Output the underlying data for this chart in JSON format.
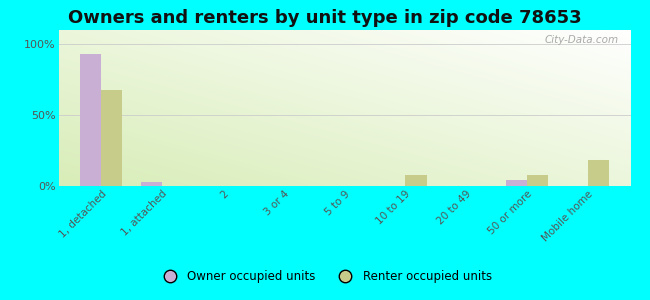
{
  "title": "Owners and renters by unit type in zip code 78653",
  "categories": [
    "1, detached",
    "1, attached",
    "2",
    "3 or 4",
    "5 to 9",
    "10 to 19",
    "20 to 49",
    "50 or more",
    "Mobile home"
  ],
  "owner_values": [
    93,
    3,
    0,
    0,
    0,
    0,
    0,
    4,
    0
  ],
  "renter_values": [
    68,
    0,
    0,
    0,
    0,
    8,
    0,
    8,
    18
  ],
  "owner_color": "#c9afd4",
  "renter_color": "#c8cc8a",
  "background_color": "#00ffff",
  "title_fontsize": 13,
  "ylabel_ticks": [
    0,
    50,
    100
  ],
  "ylabel_labels": [
    "0%",
    "50%",
    "100%"
  ],
  "ylim": [
    0,
    110
  ],
  "legend_owner": "Owner occupied units",
  "legend_renter": "Renter occupied units",
  "watermark": "City-Data.com",
  "bar_width": 0.35,
  "grid_color": "#cccccc",
  "tick_color": "#555555"
}
